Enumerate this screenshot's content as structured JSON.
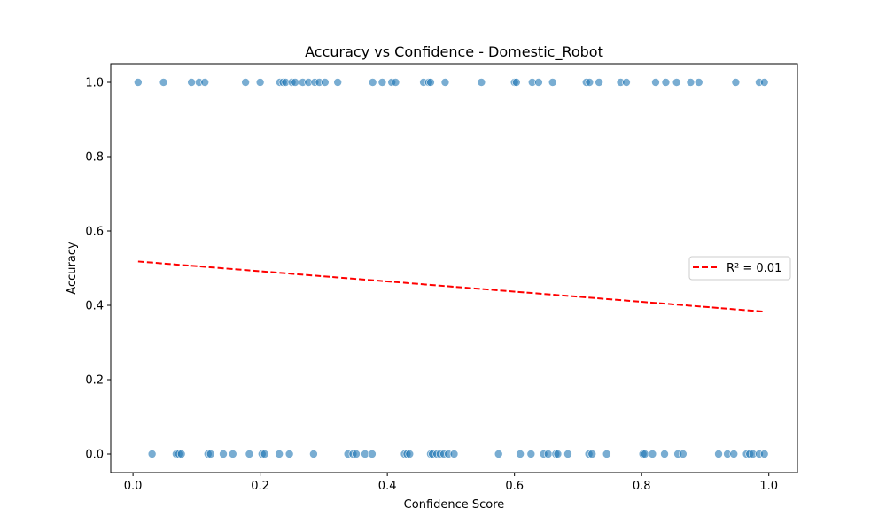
{
  "chart_data": {
    "type": "scatter",
    "title": "Accuracy vs Confidence - Domestic_Robot",
    "xlabel": "Confidence Score",
    "ylabel": "Accuracy",
    "xlim": [
      -0.035,
      1.045
    ],
    "ylim": [
      -0.05,
      1.05
    ],
    "xticks": [
      0.0,
      0.2,
      0.4,
      0.6,
      0.8,
      1.0
    ],
    "xtick_labels": [
      "0.0",
      "0.2",
      "0.4",
      "0.6",
      "0.8",
      "1.0"
    ],
    "yticks": [
      0.0,
      0.2,
      0.4,
      0.6,
      0.8,
      1.0
    ],
    "ytick_labels": [
      "0.0",
      "0.2",
      "0.4",
      "0.6",
      "0.8",
      "1.0"
    ],
    "grid": false,
    "legend_position": "center-right",
    "point_color": "#1f77b4",
    "point_opacity": 0.6,
    "trend_color": "#ff0000",
    "points": [
      {
        "x": 0.008,
        "y": 1
      },
      {
        "x": 0.048,
        "y": 1
      },
      {
        "x": 0.092,
        "y": 1
      },
      {
        "x": 0.104,
        "y": 1
      },
      {
        "x": 0.113,
        "y": 1
      },
      {
        "x": 0.177,
        "y": 1
      },
      {
        "x": 0.2,
        "y": 1
      },
      {
        "x": 0.231,
        "y": 1
      },
      {
        "x": 0.236,
        "y": 1
      },
      {
        "x": 0.24,
        "y": 1
      },
      {
        "x": 0.25,
        "y": 1
      },
      {
        "x": 0.255,
        "y": 1
      },
      {
        "x": 0.267,
        "y": 1
      },
      {
        "x": 0.276,
        "y": 1
      },
      {
        "x": 0.286,
        "y": 1
      },
      {
        "x": 0.293,
        "y": 1
      },
      {
        "x": 0.302,
        "y": 1
      },
      {
        "x": 0.322,
        "y": 1
      },
      {
        "x": 0.377,
        "y": 1
      },
      {
        "x": 0.392,
        "y": 1
      },
      {
        "x": 0.407,
        "y": 1
      },
      {
        "x": 0.413,
        "y": 1
      },
      {
        "x": 0.457,
        "y": 1
      },
      {
        "x": 0.465,
        "y": 1
      },
      {
        "x": 0.468,
        "y": 1
      },
      {
        "x": 0.491,
        "y": 1
      },
      {
        "x": 0.548,
        "y": 1
      },
      {
        "x": 0.6,
        "y": 1
      },
      {
        "x": 0.603,
        "y": 1
      },
      {
        "x": 0.628,
        "y": 1
      },
      {
        "x": 0.638,
        "y": 1
      },
      {
        "x": 0.66,
        "y": 1
      },
      {
        "x": 0.713,
        "y": 1
      },
      {
        "x": 0.718,
        "y": 1
      },
      {
        "x": 0.733,
        "y": 1
      },
      {
        "x": 0.767,
        "y": 1
      },
      {
        "x": 0.776,
        "y": 1
      },
      {
        "x": 0.822,
        "y": 1
      },
      {
        "x": 0.838,
        "y": 1
      },
      {
        "x": 0.855,
        "y": 1
      },
      {
        "x": 0.877,
        "y": 1
      },
      {
        "x": 0.89,
        "y": 1
      },
      {
        "x": 0.948,
        "y": 1
      },
      {
        "x": 0.985,
        "y": 1
      },
      {
        "x": 0.993,
        "y": 1
      },
      {
        "x": 0.03,
        "y": 0
      },
      {
        "x": 0.068,
        "y": 0
      },
      {
        "x": 0.072,
        "y": 0
      },
      {
        "x": 0.076,
        "y": 0
      },
      {
        "x": 0.118,
        "y": 0
      },
      {
        "x": 0.122,
        "y": 0
      },
      {
        "x": 0.142,
        "y": 0
      },
      {
        "x": 0.157,
        "y": 0
      },
      {
        "x": 0.183,
        "y": 0
      },
      {
        "x": 0.203,
        "y": 0
      },
      {
        "x": 0.207,
        "y": 0
      },
      {
        "x": 0.23,
        "y": 0
      },
      {
        "x": 0.246,
        "y": 0
      },
      {
        "x": 0.284,
        "y": 0
      },
      {
        "x": 0.338,
        "y": 0
      },
      {
        "x": 0.346,
        "y": 0
      },
      {
        "x": 0.351,
        "y": 0
      },
      {
        "x": 0.365,
        "y": 0
      },
      {
        "x": 0.376,
        "y": 0
      },
      {
        "x": 0.427,
        "y": 0
      },
      {
        "x": 0.431,
        "y": 0
      },
      {
        "x": 0.435,
        "y": 0
      },
      {
        "x": 0.468,
        "y": 0
      },
      {
        "x": 0.471,
        "y": 0
      },
      {
        "x": 0.478,
        "y": 0
      },
      {
        "x": 0.483,
        "y": 0
      },
      {
        "x": 0.489,
        "y": 0
      },
      {
        "x": 0.496,
        "y": 0
      },
      {
        "x": 0.505,
        "y": 0
      },
      {
        "x": 0.575,
        "y": 0
      },
      {
        "x": 0.609,
        "y": 0
      },
      {
        "x": 0.626,
        "y": 0
      },
      {
        "x": 0.646,
        "y": 0
      },
      {
        "x": 0.653,
        "y": 0
      },
      {
        "x": 0.665,
        "y": 0
      },
      {
        "x": 0.668,
        "y": 0
      },
      {
        "x": 0.684,
        "y": 0
      },
      {
        "x": 0.717,
        "y": 0
      },
      {
        "x": 0.722,
        "y": 0
      },
      {
        "x": 0.745,
        "y": 0
      },
      {
        "x": 0.802,
        "y": 0
      },
      {
        "x": 0.805,
        "y": 0
      },
      {
        "x": 0.817,
        "y": 0
      },
      {
        "x": 0.836,
        "y": 0
      },
      {
        "x": 0.857,
        "y": 0
      },
      {
        "x": 0.865,
        "y": 0
      },
      {
        "x": 0.921,
        "y": 0
      },
      {
        "x": 0.935,
        "y": 0
      },
      {
        "x": 0.945,
        "y": 0
      },
      {
        "x": 0.965,
        "y": 0
      },
      {
        "x": 0.97,
        "y": 0
      },
      {
        "x": 0.975,
        "y": 0
      },
      {
        "x": 0.985,
        "y": 0
      },
      {
        "x": 0.993,
        "y": 0
      }
    ],
    "trend_line": {
      "label": "R² = 0.01",
      "x": [
        0.008,
        0.993
      ],
      "y": [
        0.518,
        0.383
      ]
    }
  }
}
